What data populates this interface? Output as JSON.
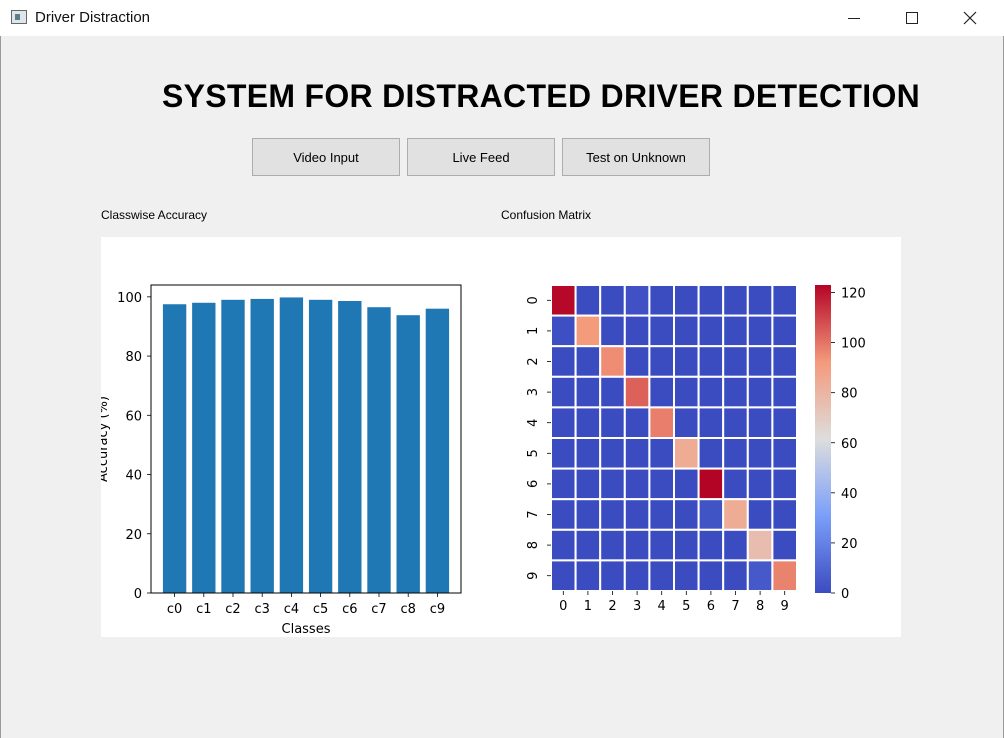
{
  "window": {
    "title": "Driver Distraction",
    "controls": {
      "minimize": "minimize-icon",
      "maximize": "maximize-icon",
      "close": "close-icon"
    }
  },
  "heading": "SYSTEM FOR DISTRACTED DRIVER DETECTION",
  "buttons": {
    "video_input": "Video Input",
    "live_feed": "Live Feed",
    "test_unknown": "Test on Unknown"
  },
  "captions": {
    "left": "Classwise Accuracy",
    "right": "Confusion Matrix"
  },
  "chart_data": [
    {
      "type": "bar",
      "categories": [
        "c0",
        "c1",
        "c2",
        "c3",
        "c4",
        "c5",
        "c6",
        "c7",
        "c8",
        "c9"
      ],
      "values": [
        97.5,
        98.0,
        99.0,
        99.3,
        99.8,
        99.0,
        98.6,
        96.5,
        93.8,
        96.0
      ],
      "xlabel": "Classes",
      "ylabel": "Accuracy (%)",
      "ylim": [
        0,
        104
      ],
      "yticks": [
        0,
        20,
        40,
        60,
        80,
        100
      ],
      "color": "#1f77b4",
      "grid": false
    },
    {
      "type": "heatmap",
      "x": [
        "0",
        "1",
        "2",
        "3",
        "4",
        "5",
        "6",
        "7",
        "8",
        "9"
      ],
      "y": [
        "0",
        "1",
        "2",
        "3",
        "4",
        "5",
        "6",
        "7",
        "8",
        "9"
      ],
      "values": [
        [
          122,
          0,
          0,
          2,
          0,
          0,
          0,
          0,
          0,
          0
        ],
        [
          1,
          92,
          0,
          0,
          0,
          0,
          0,
          0,
          0,
          0
        ],
        [
          0,
          0,
          95,
          0,
          0,
          0,
          0,
          0,
          0,
          0
        ],
        [
          0,
          0,
          0,
          104,
          0,
          0,
          0,
          0,
          0,
          0
        ],
        [
          0,
          0,
          0,
          0,
          98,
          0,
          0,
          0,
          0,
          0
        ],
        [
          0,
          0,
          0,
          0,
          0,
          84,
          0,
          0,
          0,
          0
        ],
        [
          0,
          0,
          0,
          0,
          0,
          0,
          123,
          0,
          0,
          0
        ],
        [
          0,
          0,
          0,
          0,
          0,
          0,
          3,
          84,
          0,
          0
        ],
        [
          0,
          0,
          0,
          0,
          0,
          0,
          0,
          0,
          76,
          0
        ],
        [
          0,
          0,
          0,
          0,
          0,
          0,
          0,
          0,
          5,
          97
        ]
      ],
      "colorbar": {
        "min": 0,
        "max": 123,
        "ticks": [
          0,
          20,
          40,
          60,
          80,
          100,
          120
        ],
        "colormap": "coolwarm"
      },
      "linecolor": "#ffffff"
    }
  ]
}
